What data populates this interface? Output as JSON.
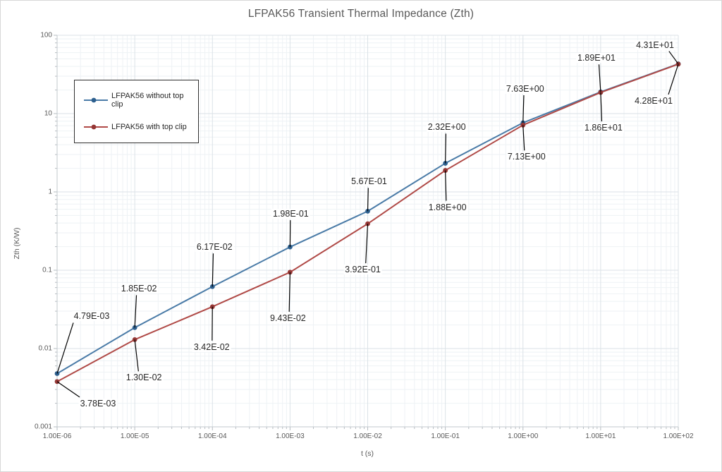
{
  "window": {
    "background": "#ffffff",
    "border_color": "#d8d8d8"
  },
  "chart_data": {
    "type": "line",
    "title": "LFPAK56 Transient Thermal Impedance (Zth)",
    "xlabel": "t (s)",
    "ylabel": "Zth (K/W)",
    "x_scale": "log",
    "y_scale": "log",
    "xlim": [
      1e-06,
      100
    ],
    "ylim": [
      0.001,
      100
    ],
    "grid": "major+minor",
    "legend_position": "upper-left-inside",
    "x": [
      1e-06,
      1e-05,
      0.0001,
      0.001,
      0.01,
      0.1,
      1,
      10,
      100
    ],
    "x_tick_labels": [
      "1.00E-06",
      "1.00E-05",
      "1.00E-04",
      "1.00E-03",
      "1.00E-02",
      "1.00E-01",
      "1.00E+00",
      "1.00E+01",
      "1.00E+02"
    ],
    "y_tick_labels": [
      "100",
      "10",
      "1",
      "0.1",
      "0.01",
      "0.001"
    ],
    "series": [
      {
        "name": "LFPAK56 without top clip",
        "color": "#4a7ba7",
        "marker_color": "#2d5f8e",
        "values": [
          0.00479,
          0.0185,
          0.0617,
          0.198,
          0.567,
          2.32,
          7.63,
          18.9,
          43.1
        ],
        "data_labels": [
          "4.79E-03",
          "1.85E-02",
          "6.17E-02",
          "1.98E-01",
          "5.67E-01",
          "2.32E+00",
          "7.63E+00",
          "1.89E+01",
          "4.31E+01"
        ],
        "label_offsets": [
          [
            49,
            -81
          ],
          [
            6,
            -55
          ],
          [
            3,
            -56
          ],
          [
            1,
            -47
          ],
          [
            2,
            -42
          ],
          [
            2,
            -51
          ],
          [
            3,
            -48
          ],
          [
            -6,
            -48
          ],
          [
            -33,
            -27
          ]
        ]
      },
      {
        "name": "LFPAK56 with top clip",
        "color": "#b04a47",
        "marker_color": "#943634",
        "values": [
          0.00378,
          0.013,
          0.0342,
          0.0943,
          0.392,
          1.88,
          7.13,
          18.6,
          42.8
        ],
        "data_labels": [
          "3.78E-03",
          "1.30E-02",
          "3.42E-02",
          "9.43E-02",
          "3.92E-01",
          "1.88E+00",
          "7.13E+00",
          "1.86E+01",
          "4.28E+01"
        ],
        "label_offsets": [
          [
            58,
            31
          ],
          [
            13,
            54
          ],
          [
            -1,
            57
          ],
          [
            -3,
            65
          ],
          [
            -7,
            65
          ],
          [
            3,
            52
          ],
          [
            5,
            45
          ],
          [
            4,
            50
          ],
          [
            -35,
            52
          ]
        ]
      }
    ],
    "colors": {
      "grid_major": "#dbe2e7",
      "grid_minor": "#eef2f5",
      "axis_line": "#c3c9ce",
      "tick": "#b6bcc1",
      "title_text": "#595959",
      "tick_text": "#595959",
      "label_text": "#262626",
      "leader_line": "#000000"
    }
  }
}
